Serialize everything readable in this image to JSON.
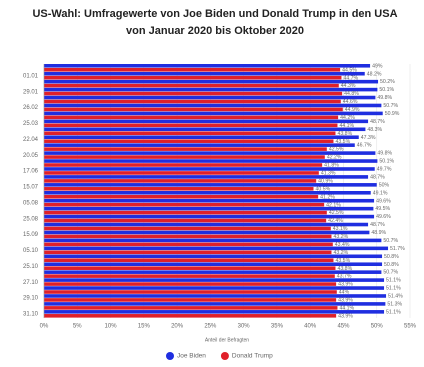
{
  "chart_data": {
    "type": "hbar",
    "title": "US-Wahl: Umfragewerte von Joe Biden und Donald Trump in den USA von Januar 2020 bis Oktober 2020",
    "x_label": "Anteil der Befragten",
    "categories": [
      null,
      "01.01",
      null,
      "29.01",
      null,
      "26.02",
      null,
      "25.03",
      null,
      "22.04",
      null,
      "20.05",
      null,
      "17.06",
      null,
      "15.07",
      null,
      "05.08",
      null,
      "25.08",
      null,
      "15.09",
      null,
      "05.10",
      null,
      "25.10",
      null,
      "27.10",
      null,
      "29.10",
      null,
      "31.10"
    ],
    "series": [
      {
        "name": "Joe Biden",
        "color": "#1f2ee0",
        "values": [
          49,
          48.2,
          50.2,
          50.1,
          49.8,
          50.7,
          50.9,
          48.7,
          48.3,
          47.3,
          46.7,
          49.8,
          50.1,
          49.7,
          48.7,
          50,
          49.1,
          49.6,
          49.5,
          49.6,
          48.7,
          48.9,
          50.7,
          51.7,
          50.8,
          50.8,
          50.7,
          51.1,
          51.1,
          51.4,
          51.3,
          51.1
        ],
        "value_labels": [
          "49%",
          "48.2%",
          "50.2%",
          "50.1%",
          "49.8%",
          "50.7%",
          "50.9%",
          "48.7%",
          "48.3%",
          "47.3%",
          "46.7%",
          "49.8%",
          "50.1%",
          "49.7%",
          "48.7%",
          "50%",
          "49.1%",
          "49.6%",
          "49.5%",
          "49.6%",
          "48.7%",
          "48.9%",
          "50.7%",
          "51.7%",
          "50.8%",
          "50.8%",
          "50.7%",
          "51.1%",
          "51.1%",
          "51.4%",
          "51.3%",
          "51.1%"
        ]
      },
      {
        "name": "Donald Trump",
        "color": "#e0202a",
        "values": [
          44.5,
          44.7,
          44.3,
          44.8,
          44.6,
          44.9,
          44.2,
          44.1,
          43.8,
          43.5,
          42.5,
          42.2,
          41.8,
          41.3,
          40.9,
          40.5,
          41.2,
          42.1,
          42.5,
          42.4,
          43.1,
          43.2,
          43.4,
          43.2,
          43.5,
          43.8,
          43.7,
          43.9,
          44,
          43.9,
          44.1,
          43.9
        ],
        "value_labels": [
          "44.5%",
          "44.7%",
          "44.3%",
          "44.8%",
          "44.6%",
          "44.9%",
          "44.2%",
          "44.1%",
          "43.8%",
          "43.5%",
          "42.5%",
          "42.2%",
          "41.8%",
          "41.3%",
          "40.9%",
          "40.5%",
          "41.2%",
          "42.1%",
          "42.5%",
          "42.4%",
          "43.1%",
          "43.2%",
          "43.4%",
          "43.2%",
          "43.5%",
          "43.8%",
          "43.7%",
          "43.9%",
          "44%",
          "43.9%",
          "44.1%",
          "43.9%"
        ]
      }
    ],
    "xlim": [
      0,
      55
    ],
    "xticks": [
      {
        "value": 0,
        "label": "0%"
      },
      {
        "value": 5,
        "label": "5%"
      },
      {
        "value": 10,
        "label": "10%"
      },
      {
        "value": 15,
        "label": "15%"
      },
      {
        "value": 20,
        "label": "20%"
      },
      {
        "value": 25,
        "label": "25%"
      },
      {
        "value": 30,
        "label": "30%"
      },
      {
        "value": 35,
        "label": "35%"
      },
      {
        "value": 40,
        "label": "40%"
      },
      {
        "value": 45,
        "label": "45%"
      },
      {
        "value": 50,
        "label": "50%"
      },
      {
        "value": 55,
        "label": "55%"
      }
    ],
    "grid": true,
    "legend": "bottom"
  }
}
